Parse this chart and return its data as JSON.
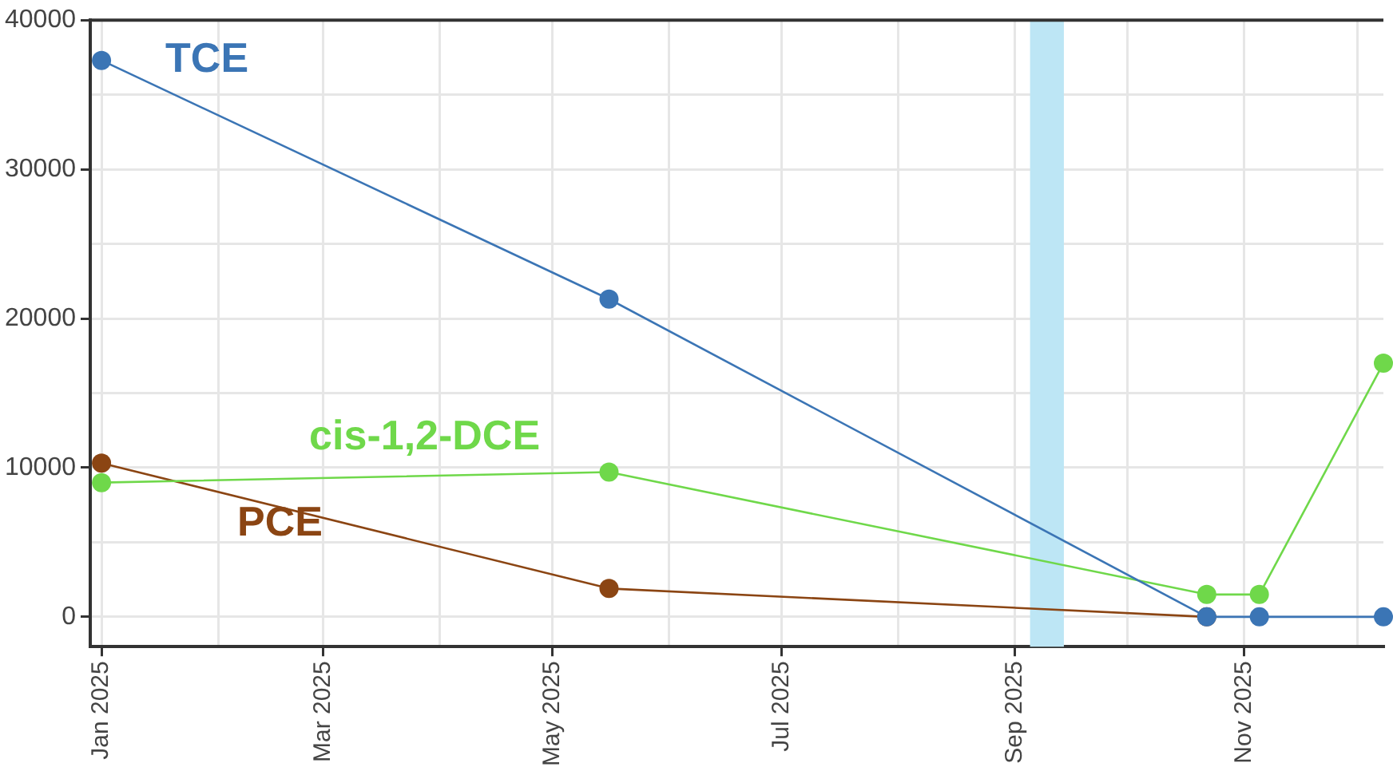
{
  "chart_data": {
    "type": "line",
    "x": [
      "2025-01-01",
      "2025-05-16",
      "2025-10-22",
      "2025-11-05",
      "2025-12-08"
    ],
    "series": [
      {
        "name": "TCE",
        "color": "#3b75b5",
        "values": [
          37300,
          21300,
          0,
          0,
          0
        ]
      },
      {
        "name": "cis-1,2-DCE",
        "color": "#6fd84a",
        "values": [
          9000,
          9700,
          1500,
          1500,
          17000
        ]
      },
      {
        "name": "PCE",
        "color": "#8b4513",
        "values": [
          10300,
          1900,
          0,
          null,
          null
        ]
      }
    ],
    "xlim": [
      "2024-12-29",
      "2025-12-08"
    ],
    "xticks": [
      {
        "value": "2025-01-01",
        "label": "Jan 2025"
      },
      {
        "value": "2025-02-01",
        "label": null
      },
      {
        "value": "2025-03-01",
        "label": "Mar 2025"
      },
      {
        "value": "2025-04-01",
        "label": null
      },
      {
        "value": "2025-05-01",
        "label": "May 2025"
      },
      {
        "value": "2025-06-01",
        "label": null
      },
      {
        "value": "2025-07-01",
        "label": "Jul 2025"
      },
      {
        "value": "2025-08-01",
        "label": null
      },
      {
        "value": "2025-09-01",
        "label": "Sep 2025"
      },
      {
        "value": "2025-10-01",
        "label": null
      },
      {
        "value": "2025-11-01",
        "label": "Nov 2025"
      },
      {
        "value": "2025-12-01",
        "label": null
      }
    ],
    "ylim": [
      -2000,
      40000
    ],
    "yticks": [
      0,
      {
        "value": 5000,
        "label": null
      },
      10000,
      {
        "value": 15000,
        "label": null
      },
      20000,
      {
        "value": 25000,
        "label": null
      },
      30000,
      {
        "value": 35000,
        "label": null
      },
      40000
    ],
    "bands": [
      {
        "axis": "x",
        "from": "2025-09-05",
        "to": "2025-09-14",
        "color": "#bde6f5"
      }
    ],
    "grid": true,
    "legend": false,
    "marker": "circle",
    "line_style": "solid"
  }
}
